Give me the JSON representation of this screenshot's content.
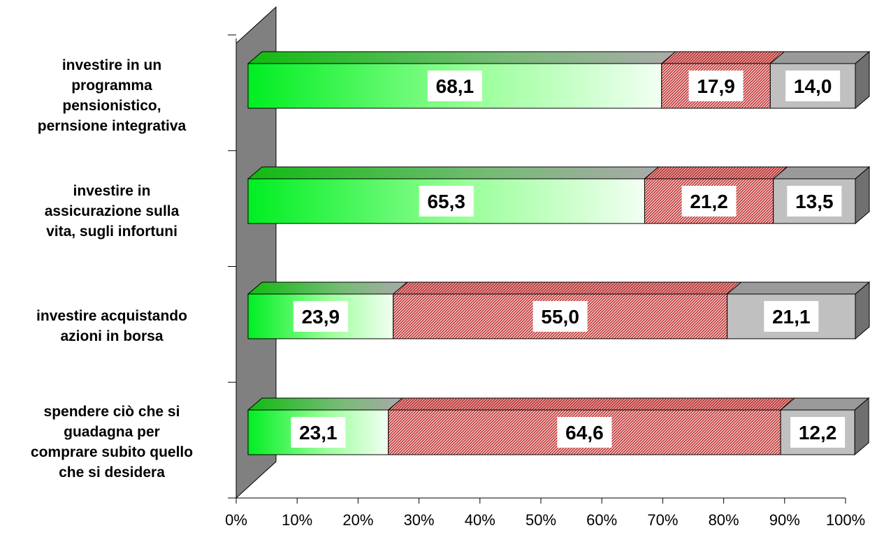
{
  "chart_data": {
    "type": "bar",
    "orientation": "horizontal",
    "stacked": true,
    "percent_stacked": true,
    "three_d": true,
    "categories": [
      "investire in un programma pensionistico, pernsione integrativa",
      "investire in assicurazione sulla vita, sugli infortuni",
      "investire acquistando azioni in borsa",
      "spendere ciò che si guadagna per comprare subito quello che si desidera"
    ],
    "category_lines": [
      [
        "investire in un",
        "programma",
        "pensionistico,",
        "pernsione integrativa"
      ],
      [
        "investire in",
        "assicurazione sulla",
        "vita, sugli infortuni"
      ],
      [
        "investire acquistando",
        "azioni in borsa"
      ],
      [
        "spendere ciò che si",
        "guadagna per",
        "comprare subito quello",
        "che si desidera"
      ]
    ],
    "series": [
      {
        "values": [
          68.1,
          65.3,
          23.9,
          23.1
        ],
        "labels": [
          "68,1",
          "65,3",
          "23,9",
          "23,1"
        ],
        "color": "#33ff33",
        "pattern": "gradient"
      },
      {
        "values": [
          17.9,
          21.2,
          55.0,
          64.6
        ],
        "labels": [
          "17,9",
          "21,2",
          "55,0",
          "64,6"
        ],
        "color": "#cc3333",
        "pattern": "hatch"
      },
      {
        "values": [
          14.0,
          13.5,
          21.1,
          12.2
        ],
        "labels": [
          "14,0",
          "13,5",
          "21,1",
          "12,2"
        ],
        "color": "#c0c0c0",
        "pattern": "solid"
      }
    ],
    "x_ticks": [
      "0%",
      "10%",
      "20%",
      "30%",
      "40%",
      "50%",
      "60%",
      "70%",
      "80%",
      "90%",
      "100%"
    ],
    "xlim": [
      0,
      100
    ],
    "title": "",
    "xlabel": "",
    "ylabel": "",
    "legend": "none",
    "grid": false
  }
}
